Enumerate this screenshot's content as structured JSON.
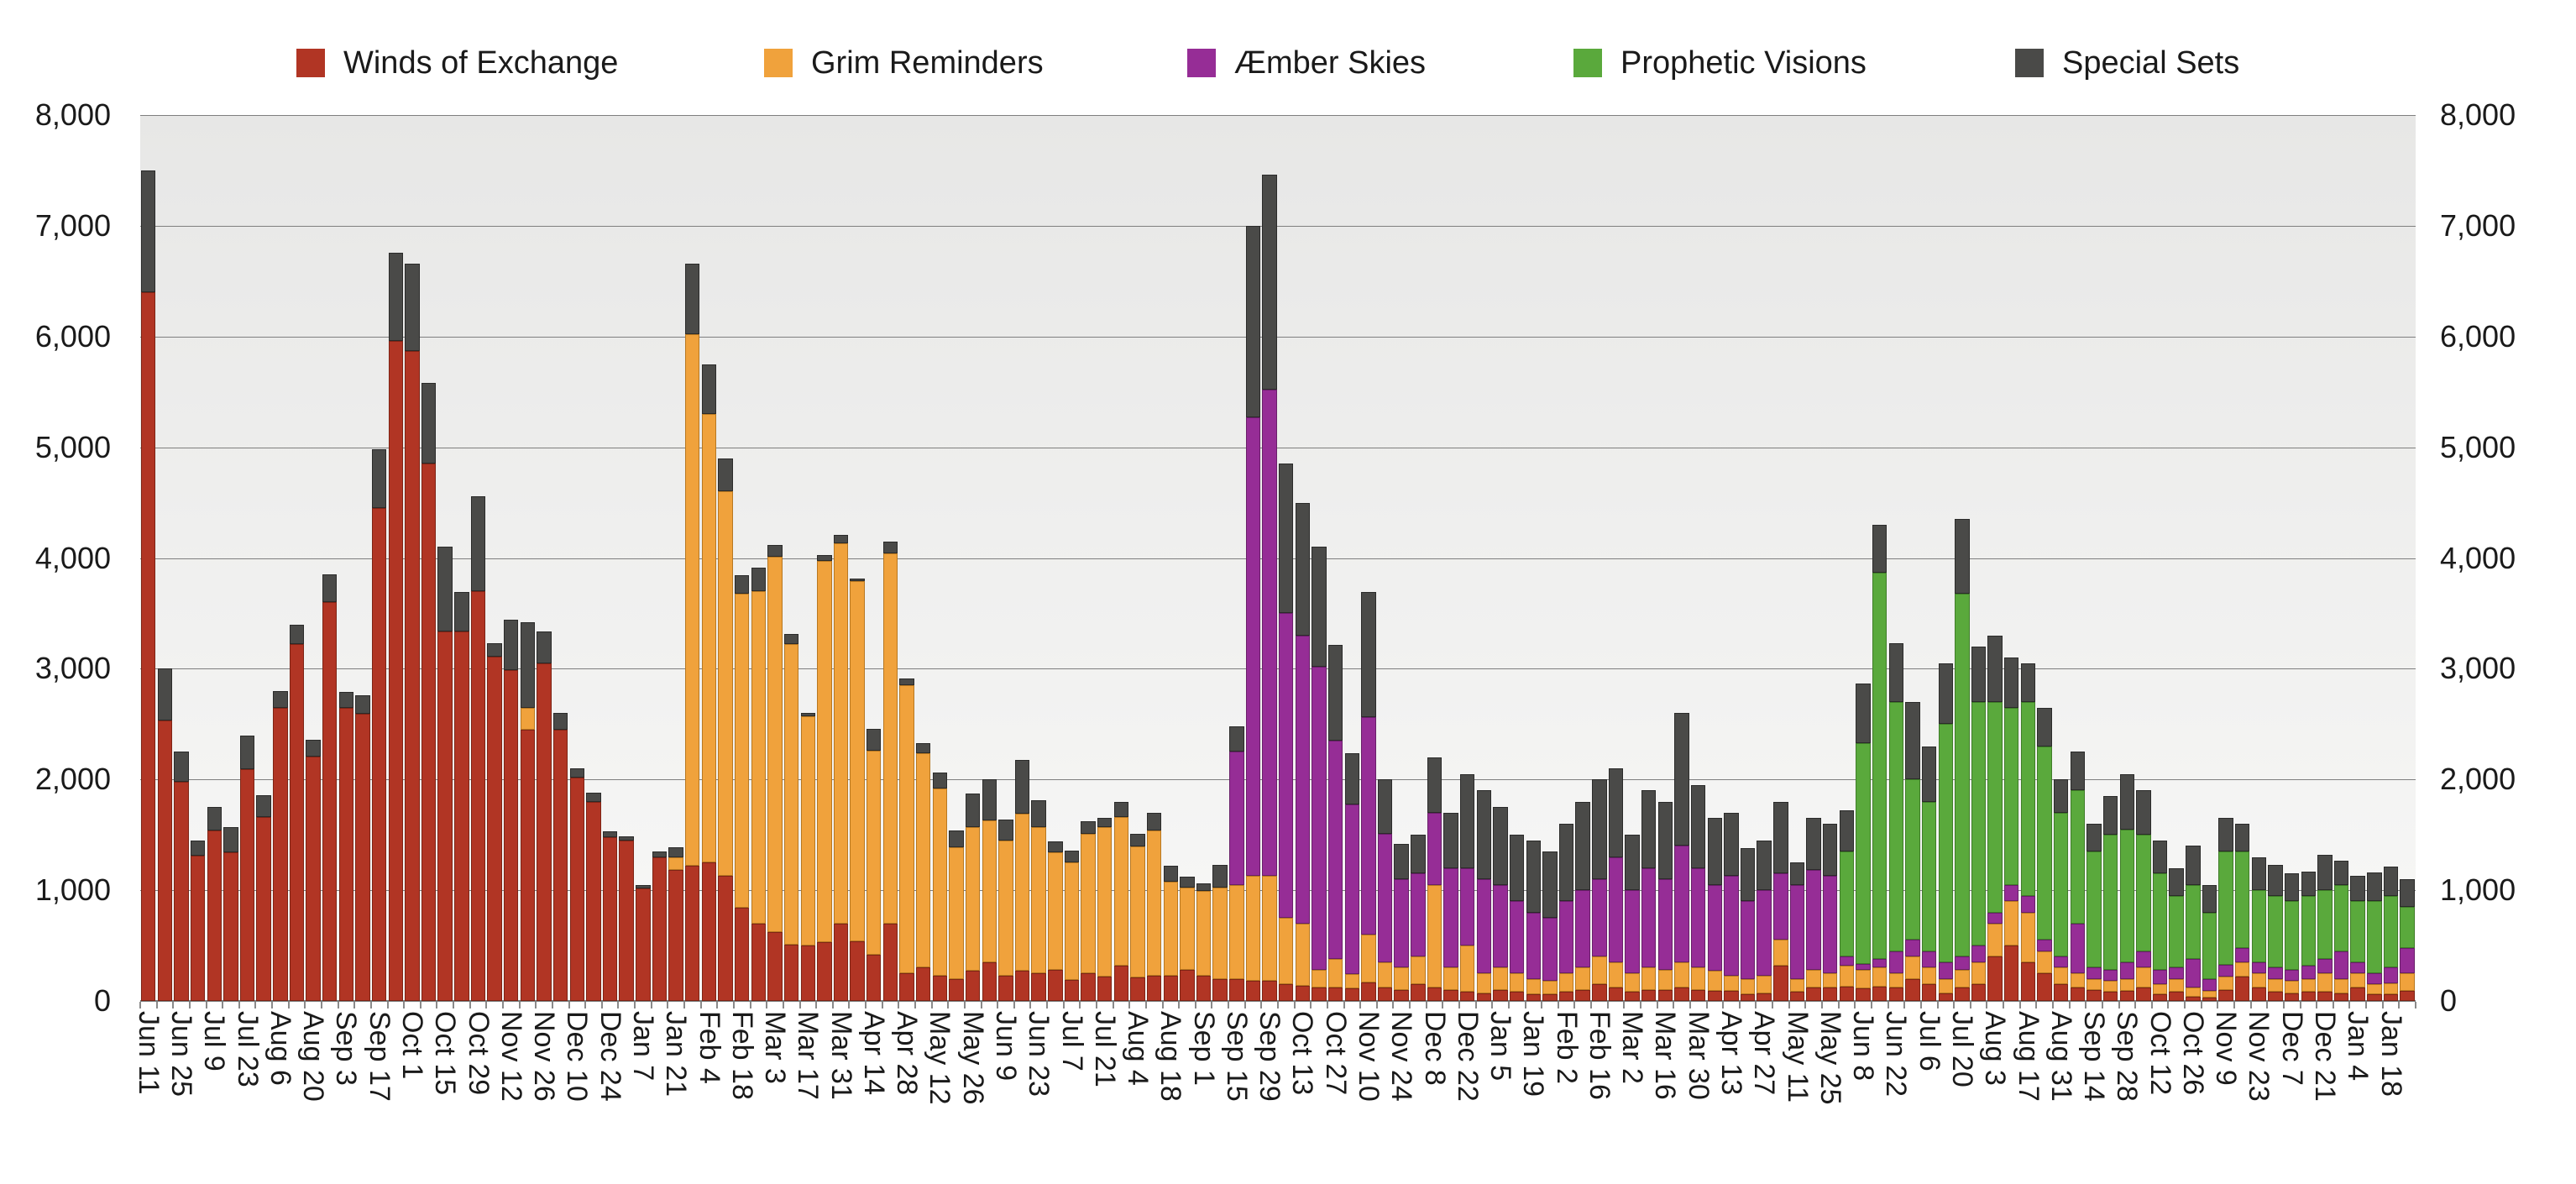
{
  "chart_data": {
    "type": "bar",
    "subtype": "stacked-weekly",
    "title": "",
    "xlabel": "",
    "ylabel": "",
    "grid": true,
    "legend_position": "top",
    "background_gradient": [
      "#E7E7E6",
      "#F8F8F7"
    ],
    "gridline_color": "#7F7F7F",
    "text_color": "#1A1A1A",
    "y_axis": {
      "min": 0,
      "max": 8000,
      "tick_interval": 1000,
      "tick_labels": [
        "0",
        "1,000",
        "2,000",
        "3,000",
        "4,000",
        "5,000",
        "6,000",
        "7,000",
        "8,000"
      ],
      "sides": [
        "left",
        "right"
      ]
    },
    "x_axis": {
      "label_every": 2,
      "first_label": "Jun 11",
      "last_label": "Jan 18"
    },
    "categories": [
      "Jun 11",
      "Jun 18",
      "Jun 25",
      "Jul 2",
      "Jul 9",
      "Jul 16",
      "Jul 23",
      "Jul 30",
      "Aug 6",
      "Aug 13",
      "Aug 20",
      "Aug 27",
      "Sep 3",
      "Sep 10",
      "Sep 17",
      "Sep 24",
      "Oct 1",
      "Oct 8",
      "Oct 15",
      "Oct 22",
      "Oct 29",
      "Nov 5",
      "Nov 12",
      "Nov 19",
      "Nov 26",
      "Dec 3",
      "Dec 10",
      "Dec 17",
      "Dec 24",
      "Dec 31",
      "Jan 7",
      "Jan 14",
      "Jan 21",
      "Jan 28",
      "Feb 4",
      "Feb 11",
      "Feb 18",
      "Feb 25",
      "Mar 3",
      "Mar 10",
      "Mar 17",
      "Mar 24",
      "Mar 31",
      "Apr 7",
      "Apr 14",
      "Apr 21",
      "Apr 28",
      "May 5",
      "May 12",
      "May 19",
      "May 26",
      "Jun 2",
      "Jun 9",
      "Jun 16",
      "Jun 23",
      "Jun 30",
      "Jul 7",
      "Jul 14",
      "Jul 21",
      "Jul 28",
      "Aug 4",
      "Aug 11",
      "Aug 18",
      "Aug 25",
      "Sep 1",
      "Sep 8",
      "Sep 15",
      "Sep 22",
      "Sep 29",
      "Oct 6",
      "Oct 13",
      "Oct 20",
      "Oct 27",
      "Nov 3",
      "Nov 10",
      "Nov 17",
      "Nov 24",
      "Dec 1",
      "Dec 8",
      "Dec 15",
      "Dec 22",
      "Dec 29",
      "Jan 5",
      "Jan 12",
      "Jan 19",
      "Jan 26",
      "Feb 2",
      "Feb 9",
      "Feb 16",
      "Feb 23",
      "Mar 2",
      "Mar 9",
      "Mar 16",
      "Mar 23",
      "Mar 30",
      "Apr 6",
      "Apr 13",
      "Apr 20",
      "Apr 27",
      "May 4",
      "May 11",
      "May 18",
      "May 25",
      "Jun 1",
      "Jun 8",
      "Jun 15",
      "Jun 22",
      "Jun 29",
      "Jul 6",
      "Jul 13",
      "Jul 20",
      "Jul 27",
      "Aug 3",
      "Aug 10",
      "Aug 17",
      "Aug 24",
      "Aug 31",
      "Sep 7",
      "Sep 14",
      "Sep 21",
      "Sep 28",
      "Oct 5",
      "Oct 12",
      "Oct 19",
      "Oct 26",
      "Nov 2",
      "Nov 9",
      "Nov 16",
      "Nov 23",
      "Nov 30",
      "Dec 7",
      "Dec 14",
      "Dec 21",
      "Dec 28",
      "Jan 4",
      "Jan 11",
      "Jan 18",
      "Jan 25"
    ],
    "series": [
      {
        "name": "Winds of Exchange",
        "color": "#B13524",
        "border": "#7E2415",
        "values": [
          6400,
          2530,
          1980,
          1310,
          1540,
          1340,
          2090,
          1660,
          2650,
          3220,
          2210,
          3600,
          2645,
          2590,
          4450,
          5960,
          5870,
          4850,
          3340,
          3340,
          3700,
          3110,
          2990,
          2450,
          3050,
          2450,
          2020,
          1800,
          1480,
          1450,
          1020,
          1300,
          1180,
          1220,
          1250,
          1130,
          845,
          700,
          620,
          510,
          500,
          530,
          700,
          540,
          420,
          700,
          250,
          300,
          230,
          200,
          270,
          350,
          230,
          270,
          250,
          280,
          190,
          250,
          220,
          320,
          210,
          230,
          230,
          280,
          230,
          200,
          200,
          180,
          180,
          150,
          140,
          120,
          120,
          110,
          170,
          120,
          100,
          150,
          120,
          100,
          80,
          70,
          100,
          80,
          60,
          60,
          80,
          100,
          150,
          120,
          80,
          100,
          100,
          120,
          100,
          90,
          90,
          60,
          70,
          320,
          80,
          120,
          120,
          130,
          110,
          130,
          120,
          200,
          150,
          70,
          120,
          150,
          400,
          500,
          350,
          250,
          150,
          120,
          100,
          80,
          90,
          120,
          60,
          80,
          40,
          30,
          100,
          220,
          120,
          80,
          70,
          80,
          80,
          70,
          120,
          60,
          60,
          90
        ]
      },
      {
        "name": "Grim Reminders",
        "color": "#F0A23C",
        "border": "#B87821",
        "values": [
          0,
          0,
          0,
          0,
          0,
          0,
          0,
          0,
          0,
          0,
          0,
          0,
          0,
          0,
          0,
          0,
          0,
          0,
          0,
          0,
          0,
          0,
          0,
          200,
          0,
          0,
          0,
          0,
          0,
          0,
          0,
          0,
          120,
          4800,
          4050,
          3470,
          2835,
          3000,
          3390,
          2715,
          2070,
          3445,
          3435,
          3250,
          1840,
          3340,
          2600,
          1940,
          1690,
          1190,
          1300,
          1280,
          1220,
          1420,
          1320,
          1060,
          1060,
          1260,
          1350,
          1340,
          1185,
          1310,
          845,
          740,
          760,
          820,
          850,
          950,
          950,
          600,
          560,
          160,
          260,
          130,
          430,
          230,
          200,
          250,
          930,
          200,
          420,
          180,
          200,
          170,
          140,
          120,
          170,
          200,
          250,
          230,
          170,
          200,
          180,
          230,
          200,
          180,
          140,
          140,
          160,
          230,
          120,
          160,
          130,
          190,
          170,
          170,
          130,
          200,
          150,
          130,
          160,
          200,
          300,
          400,
          450,
          200,
          150,
          130,
          100,
          100,
          110,
          180,
          90,
          120,
          80,
          60,
          120,
          130,
          130,
          120,
          110,
          120,
          170,
          130,
          130,
          90,
          100,
          160
        ]
      },
      {
        "name": "Æmber Skies",
        "color": "#962D96",
        "border": "#691F69",
        "values": [
          0,
          0,
          0,
          0,
          0,
          0,
          0,
          0,
          0,
          0,
          0,
          0,
          0,
          0,
          0,
          0,
          0,
          0,
          0,
          0,
          0,
          0,
          0,
          0,
          0,
          0,
          0,
          0,
          0,
          0,
          0,
          0,
          0,
          0,
          0,
          0,
          0,
          0,
          0,
          0,
          0,
          0,
          0,
          0,
          0,
          0,
          0,
          0,
          0,
          0,
          0,
          0,
          0,
          0,
          0,
          0,
          0,
          0,
          0,
          0,
          0,
          0,
          0,
          0,
          0,
          0,
          1200,
          4140,
          4390,
          2750,
          2600,
          2740,
          1970,
          1535,
          1960,
          1160,
          800,
          750,
          650,
          900,
          700,
          850,
          750,
          650,
          600,
          570,
          650,
          700,
          700,
          950,
          750,
          900,
          820,
          1050,
          900,
          780,
          900,
          700,
          770,
          600,
          850,
          900,
          880,
          80,
          50,
          80,
          200,
          150,
          150,
          150,
          120,
          150,
          100,
          150,
          150,
          100,
          100,
          450,
          100,
          100,
          150,
          150,
          130,
          100,
          260,
          110,
          110,
          130,
          100,
          100,
          100,
          120,
          130,
          250,
          100,
          100,
          140,
          230
        ]
      },
      {
        "name": "Prophetic Visions",
        "color": "#5AA93C",
        "border": "#3F7D28",
        "values": [
          0,
          0,
          0,
          0,
          0,
          0,
          0,
          0,
          0,
          0,
          0,
          0,
          0,
          0,
          0,
          0,
          0,
          0,
          0,
          0,
          0,
          0,
          0,
          0,
          0,
          0,
          0,
          0,
          0,
          0,
          0,
          0,
          0,
          0,
          0,
          0,
          0,
          0,
          0,
          0,
          0,
          0,
          0,
          0,
          0,
          0,
          0,
          0,
          0,
          0,
          0,
          0,
          0,
          0,
          0,
          0,
          0,
          0,
          0,
          0,
          0,
          0,
          0,
          0,
          0,
          0,
          0,
          0,
          0,
          0,
          0,
          0,
          0,
          0,
          0,
          0,
          0,
          0,
          0,
          0,
          0,
          0,
          0,
          0,
          0,
          0,
          0,
          0,
          0,
          0,
          0,
          0,
          0,
          0,
          0,
          0,
          0,
          0,
          0,
          0,
          0,
          0,
          0,
          950,
          2000,
          3490,
          2250,
          1450,
          1350,
          2150,
          3280,
          2200,
          1900,
          1600,
          1750,
          1750,
          1300,
          1200,
          1050,
          1220,
          1200,
          1050,
          870,
          650,
          670,
          600,
          1020,
          870,
          650,
          650,
          620,
          630,
          620,
          600,
          550,
          650,
          650,
          370
        ]
      },
      {
        "name": "Special Sets",
        "color": "#4A4A48",
        "border": "#2B2B2A",
        "values": [
          1100,
          470,
          270,
          140,
          210,
          230,
          310,
          200,
          150,
          180,
          145,
          250,
          145,
          170,
          530,
          800,
          790,
          730,
          760,
          350,
          860,
          120,
          450,
          770,
          290,
          150,
          80,
          80,
          50,
          40,
          30,
          50,
          90,
          640,
          450,
          300,
          165,
          215,
          105,
          90,
          30,
          50,
          75,
          25,
          200,
          110,
          60,
          90,
          140,
          150,
          300,
          370,
          190,
          490,
          240,
          100,
          110,
          110,
          80,
          140,
          115,
          160,
          145,
          100,
          70,
          210,
          230,
          1730,
          1940,
          1350,
          1200,
          1080,
          865,
          465,
          1130,
          490,
          320,
          350,
          500,
          500,
          850,
          800,
          700,
          600,
          650,
          600,
          700,
          800,
          900,
          800,
          500,
          700,
          700,
          1200,
          750,
          600,
          570,
          480,
          450,
          650,
          200,
          470,
          470,
          370,
          540,
          430,
          530,
          700,
          500,
          550,
          670,
          500,
          600,
          450,
          350,
          350,
          300,
          350,
          250,
          350,
          500,
          400,
          300,
          250,
          350,
          250,
          300,
          250,
          300,
          280,
          250,
          220,
          320,
          220,
          230,
          260,
          260,
          250
        ]
      }
    ]
  }
}
